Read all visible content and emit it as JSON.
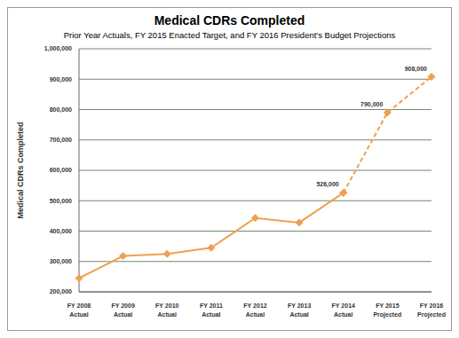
{
  "chart_data": {
    "type": "line",
    "title": "Medical CDRs Completed",
    "subtitle": "Prior Year Actuals, FY 2015 Enacted Target, and FY 2016 President's Budget Projections",
    "y_label": "Medical CDRs Completed",
    "categories": [
      "FY 2008 Actual",
      "FY 2009 Actual",
      "FY 2010 Actual",
      "FY 2011 Actual",
      "FY 2012 Actual",
      "FY 2013 Actual",
      "FY 2014 Actual",
      "FY 2015 Projected",
      "FY 2016 Projected"
    ],
    "series": [
      {
        "color": "#f0a050",
        "line_style": "solid",
        "marker": "diamond",
        "values": [
          245000,
          318000,
          325000,
          345000,
          443000,
          428000,
          526000,
          null,
          null
        ]
      },
      {
        "color": "#f0a050",
        "line_style": "dashed",
        "marker": "diamond",
        "data_labels": true,
        "values": [
          null,
          null,
          null,
          null,
          null,
          null,
          526000,
          790000,
          908000
        ],
        "value_labels": [
          null,
          null,
          null,
          null,
          null,
          null,
          "526,000",
          "790,000",
          "908,000"
        ]
      }
    ],
    "ylim": [
      200000,
      1000000
    ],
    "yticks": [
      {
        "value": 200000,
        "label": "200,000"
      },
      {
        "value": 300000,
        "label": "300,000"
      },
      {
        "value": 400000,
        "label": "400,000"
      },
      {
        "value": 500000,
        "label": "500,000"
      },
      {
        "value": 600000,
        "label": "600,000"
      },
      {
        "value": 700000,
        "label": "700,000"
      },
      {
        "value": 800000,
        "label": "800,000"
      },
      {
        "value": 900000,
        "label": "900,000"
      },
      {
        "value": 1000000,
        "label": "1,000,000"
      }
    ],
    "grid": true,
    "legend": null
  }
}
